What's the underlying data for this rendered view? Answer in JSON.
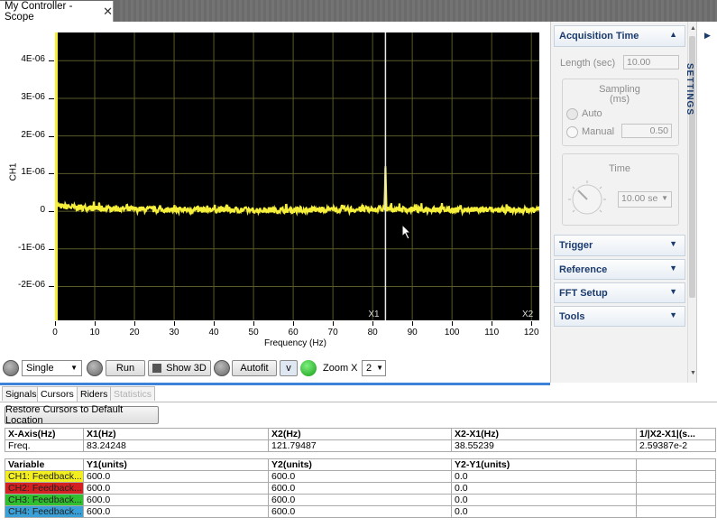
{
  "window": {
    "tab_title": "My Controller - Scope",
    "tab_close": "✕"
  },
  "plot": {
    "y_axis_label": "CH1",
    "x_axis_label": "Frequency (Hz)",
    "y_ticks": [
      "4E-06",
      "3E-06",
      "2E-06",
      "1E-06",
      "0",
      "-1E-06",
      "-2E-06"
    ],
    "x_ticks": [
      "0",
      "10",
      "20",
      "30",
      "40",
      "50",
      "60",
      "70",
      "80",
      "90",
      "100",
      "110",
      "120"
    ],
    "cursor_x1_label": "X1",
    "cursor_x2_label": "X2"
  },
  "chart_data": {
    "type": "line",
    "xlabel": "Frequency (Hz)",
    "ylabel": "CH1",
    "xlim": [
      0,
      122
    ],
    "ylim": [
      -2.9e-06,
      4.75e-06
    ],
    "grid": true,
    "series": [
      {
        "name": "CH1",
        "color": "#f5ee3a",
        "x": [
          0,
          5,
          10,
          20,
          30,
          40,
          50,
          60,
          70,
          80,
          83,
          83.24,
          83.5,
          90,
          100,
          110,
          120,
          122
        ],
        "y": [
          1.5e-07,
          1e-07,
          8e-08,
          5e-08,
          4e-08,
          4e-08,
          3e-08,
          3e-08,
          4e-08,
          5e-08,
          6e-08,
          1.2e-06,
          6e-08,
          4e-08,
          4e-08,
          3e-08,
          3e-08,
          3e-08
        ]
      }
    ],
    "cursors": {
      "X1": 83.24248,
      "X2": 121.79487
    }
  },
  "toolbar": {
    "mode_value": "Single",
    "run_label": "Run",
    "show3d_label": "Show 3D",
    "autofit_label": "Autofit",
    "v_label": "v",
    "zoomx_label": "Zoom X",
    "zoomx_value": "2"
  },
  "side": {
    "acq_title": "Acquisition Time",
    "length_label": "Length (sec)",
    "length_value": "10.00",
    "sampling_label": "Sampling",
    "sampling_unit": "(ms)",
    "auto_label": "Auto",
    "manual_label": "Manual",
    "manual_value": "0.50",
    "time_label": "Time",
    "time_value": "10.00 se",
    "trigger": "Trigger",
    "reference": "Reference",
    "fft_setup": "FFT Setup",
    "tools": "Tools",
    "settings": "SETTINGS"
  },
  "bottom": {
    "tabs": [
      "Signals",
      "Cursors",
      "Riders",
      "Statistics"
    ],
    "restore_label": "Restore Cursors to Default Location",
    "xheader": [
      "X-Axis(Hz)",
      "X1(Hz)",
      "X2(Hz)",
      "X2-X1(Hz)",
      "1/|X2-X1|(s..."
    ],
    "xrow": [
      "Freq.",
      "83.24248",
      "121.79487",
      "38.55239",
      "2.59387e-2"
    ],
    "yheader": [
      "Variable",
      "Y1(units)",
      "Y2(units)",
      "Y2-Y1(units)",
      ""
    ],
    "rows": [
      {
        "name": "CH1: Feedback...",
        "color": "#f2ee20",
        "y1": "600.0",
        "y2": "600.0",
        "d": "0.0"
      },
      {
        "name": "CH2: Feedback...",
        "color": "#d42020",
        "y1": "600.0",
        "y2": "600.0",
        "d": "0.0"
      },
      {
        "name": "CH3: Feedback...",
        "color": "#2fbf2f",
        "y1": "600.0",
        "y2": "600.0",
        "d": "0.0"
      },
      {
        "name": "CH4: Feedback...",
        "color": "#3aa0d8",
        "y1": "600.0",
        "y2": "600.0",
        "d": "0.0"
      }
    ]
  }
}
